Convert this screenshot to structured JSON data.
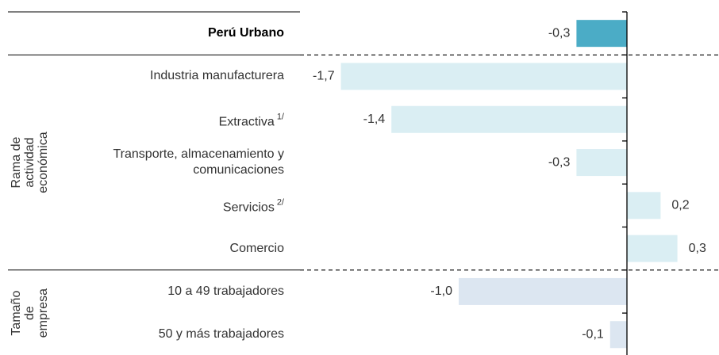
{
  "chart_data": {
    "type": "bar",
    "orientation": "horizontal",
    "xlim": [
      -2,
      0.5
    ],
    "groups": [
      {
        "categories": [
          "Perú Urbano"
        ],
        "values": [
          -0.3
        ],
        "value_labels": [
          "-0,3"
        ],
        "color": "#4bacc6"
      },
      {
        "label": [
          "Rama de",
          "actividad",
          "económica"
        ],
        "categories": [
          "Industria manufacturera",
          "Extractiva",
          "Transporte, almacenamiento y comunicaciones",
          "Servicios",
          "Comercio"
        ],
        "notes": [
          null,
          "1/",
          null,
          "2/",
          null
        ],
        "values": [
          -1.7,
          -1.4,
          -0.3,
          0.2,
          0.3
        ],
        "value_labels": [
          "-1,7",
          "-1,4",
          "-0,3",
          "0,2",
          "0,3"
        ],
        "color": "#daeef3"
      },
      {
        "label": [
          "Tamaño",
          "de",
          "empresa"
        ],
        "categories": [
          "10 a 49 trabajadores",
          "50 y más trabajadores"
        ],
        "values": [
          -1.0,
          -0.1
        ],
        "value_labels": [
          "-1,0",
          "-0,1"
        ],
        "color": "#dce6f1"
      }
    ]
  }
}
